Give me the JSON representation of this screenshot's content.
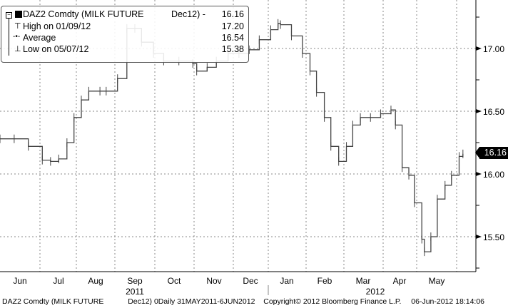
{
  "chart_data": {
    "type": "line",
    "style": "step",
    "ticker": "DAZ2 Comdty",
    "series": [
      {
        "name": "DAZ2 Comdty (MILK FUTURE Dec12)",
        "color": "#444444",
        "points": [
          [
            "2011-05-31",
            16.28
          ],
          [
            "2011-06-11",
            16.28
          ],
          [
            "2011-06-22",
            16.22
          ],
          [
            "2011-07-03",
            16.11
          ],
          [
            "2011-07-10",
            16.1
          ],
          [
            "2011-07-17",
            16.12
          ],
          [
            "2011-07-24",
            16.25
          ],
          [
            "2011-07-30",
            16.45
          ],
          [
            "2011-08-05",
            16.59
          ],
          [
            "2011-08-11",
            16.66
          ],
          [
            "2011-08-20",
            16.66
          ],
          [
            "2011-08-25",
            16.66
          ],
          [
            "2011-09-03",
            16.76
          ],
          [
            "2011-09-10",
            17.16
          ],
          [
            "2011-09-16",
            17.16
          ],
          [
            "2011-09-21",
            17.05
          ],
          [
            "2011-09-30",
            16.96
          ],
          [
            "2011-10-08",
            16.9
          ],
          [
            "2011-10-20",
            16.9
          ],
          [
            "2011-10-31",
            16.88
          ],
          [
            "2011-11-03",
            16.82
          ],
          [
            "2011-11-11",
            16.85
          ],
          [
            "2011-11-18",
            16.9
          ],
          [
            "2011-11-27",
            16.96
          ],
          [
            "2011-12-06",
            16.96
          ],
          [
            "2011-12-15",
            16.99
          ],
          [
            "2011-12-24",
            17.07
          ],
          [
            "2012-01-03",
            17.15
          ],
          [
            "2012-01-09",
            17.2
          ],
          [
            "2012-01-11",
            17.19
          ],
          [
            "2012-01-20",
            17.1
          ],
          [
            "2012-01-29",
            16.96
          ],
          [
            "2012-02-04",
            16.82
          ],
          [
            "2012-02-09",
            16.65
          ],
          [
            "2012-02-15",
            16.45
          ],
          [
            "2012-02-20",
            16.22
          ],
          [
            "2012-02-26",
            16.1
          ],
          [
            "2012-03-03",
            16.22
          ],
          [
            "2012-03-08",
            16.39
          ],
          [
            "2012-03-14",
            16.45
          ],
          [
            "2012-03-22",
            16.45
          ],
          [
            "2012-03-30",
            16.48
          ],
          [
            "2012-04-08",
            16.51
          ],
          [
            "2012-04-12",
            16.39
          ],
          [
            "2012-04-18",
            16.05
          ],
          [
            "2012-04-24",
            15.99
          ],
          [
            "2012-04-29",
            15.77
          ],
          [
            "2012-05-05",
            15.48
          ],
          [
            "2012-05-07",
            15.38
          ],
          [
            "2012-05-12",
            15.5
          ],
          [
            "2012-05-17",
            15.8
          ],
          [
            "2012-05-23",
            15.91
          ],
          [
            "2012-05-28",
            15.99
          ],
          [
            "2012-06-03",
            16.14
          ],
          [
            "2012-06-06",
            16.16
          ]
        ]
      }
    ],
    "y_axis": {
      "position": "right",
      "range": [
        15.27,
        17.33
      ],
      "ticks": [
        "15.50",
        "16.00",
        "16.50",
        "17.00"
      ]
    },
    "x_axis": {
      "months": [
        "Jun",
        "Jul",
        "Aug",
        "Sep",
        "Oct",
        "Nov",
        "Dec",
        "Jan",
        "Feb",
        "Mar",
        "Apr",
        "May"
      ],
      "years": [
        "2011",
        "2012"
      ]
    },
    "grid": true,
    "last_price_tag": "16.16",
    "legend": {
      "placement": "top-left",
      "rows": [
        {
          "label": "DAZ2 Comdty (MILK FUTURE",
          "mid": "Dec12) -",
          "value": "16.16"
        },
        {
          "label": "High on 01/09/12",
          "value": "17.20"
        },
        {
          "label": "Average",
          "value": "16.54"
        },
        {
          "label": "Low on 05/07/12",
          "value": "15.38"
        }
      ]
    }
  },
  "footer": {
    "left": "DAZ2 Comdty (MILK FUTURE",
    "range": "Dec12) 0Daily 31MAY2011-6JUN2012",
    "copyright": "Copyright© 2012 Bloomberg Finance L.P.",
    "timestamp": "06-Jun-2012 18:14:06"
  }
}
